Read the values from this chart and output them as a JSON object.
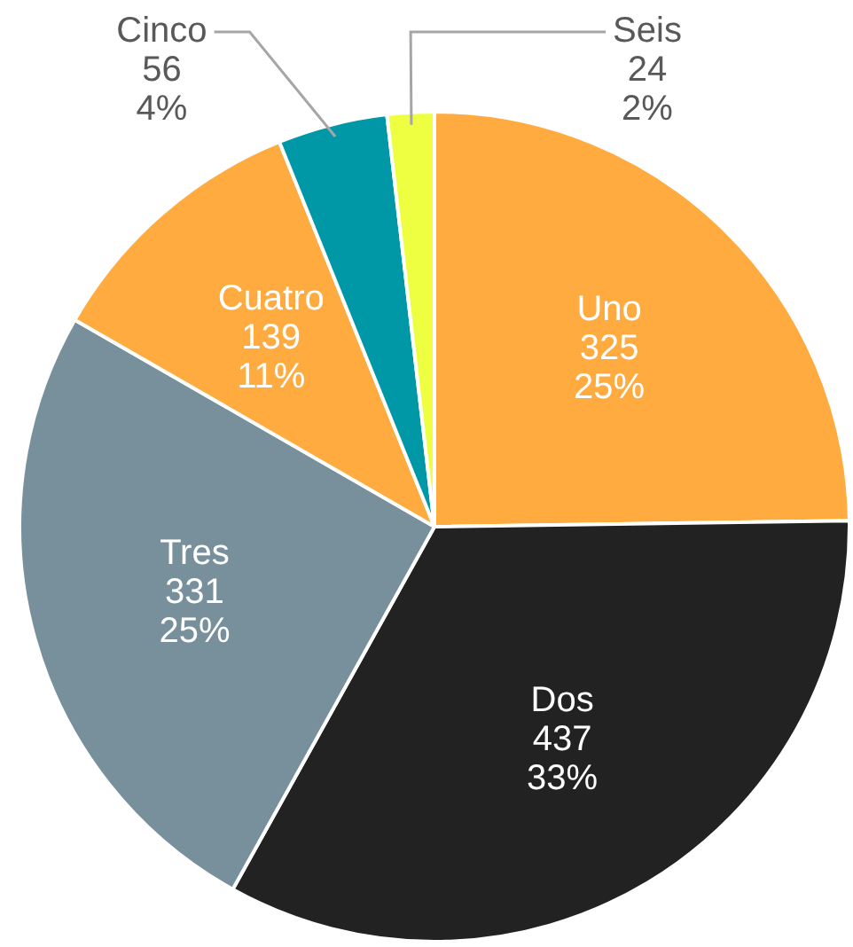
{
  "chart_data": {
    "type": "pie",
    "categories": [
      "Uno",
      "Dos",
      "Tres",
      "Cuatro",
      "Cinco",
      "Seis"
    ],
    "values": [
      325,
      437,
      331,
      139,
      56,
      24
    ],
    "colors": [
      "#ffab40",
      "#222222",
      "#78909c",
      "#ffab40",
      "#0097a7",
      "#eeff41"
    ],
    "value_labels": [
      "325\n25%",
      "437\n33%",
      "331\n25%",
      "139\n11%",
      "56\n4%",
      "24\n2%"
    ],
    "legend": false
  }
}
